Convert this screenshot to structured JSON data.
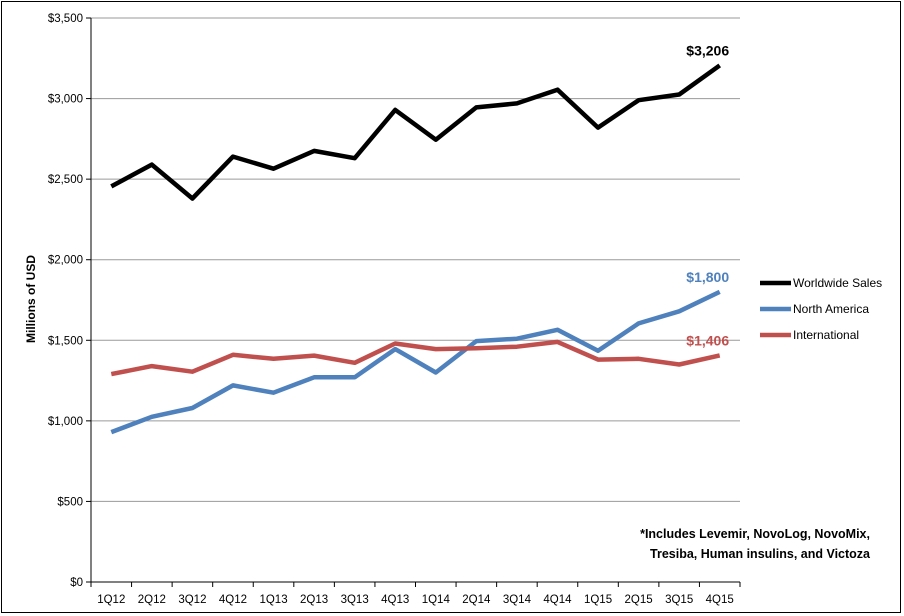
{
  "chart_data": {
    "type": "line",
    "title": "",
    "xlabel": "",
    "ylabel": "Millions of USD",
    "categories": [
      "1Q12",
      "2Q12",
      "3Q12",
      "4Q12",
      "1Q13",
      "2Q13",
      "3Q13",
      "4Q13",
      "1Q14",
      "2Q14",
      "3Q14",
      "4Q14",
      "1Q15",
      "2Q15",
      "3Q15",
      "4Q15"
    ],
    "ylim": [
      0,
      3500
    ],
    "yticks": [
      0,
      500,
      1000,
      1500,
      2000,
      2500,
      3000,
      3500
    ],
    "ytick_labels": [
      "$0",
      "$500",
      "$1,000",
      "$1,500",
      "$2,000",
      "$2,500",
      "$3,000",
      "$3,500"
    ],
    "grid": true,
    "legend_position": "right",
    "series": [
      {
        "name": "Worldwide Sales",
        "color": "#000000",
        "values": [
          2455,
          2590,
          2380,
          2640,
          2565,
          2675,
          2630,
          2930,
          2745,
          2945,
          2970,
          3055,
          2820,
          2990,
          3025,
          3206
        ],
        "end_label": "$3,206"
      },
      {
        "name": "North America",
        "color": "#4F81BD",
        "values": [
          930,
          1025,
          1080,
          1220,
          1175,
          1270,
          1270,
          1445,
          1300,
          1495,
          1510,
          1565,
          1435,
          1605,
          1680,
          1800
        ],
        "end_label": "$1,800"
      },
      {
        "name": "International",
        "color": "#C0504D",
        "values": [
          1290,
          1340,
          1305,
          1410,
          1385,
          1405,
          1360,
          1480,
          1445,
          1450,
          1460,
          1490,
          1380,
          1385,
          1350,
          1406
        ],
        "end_label": "$1,406"
      }
    ]
  },
  "footnote": {
    "line1": "*Includes Levemir, NovoLog, NovoMix,",
    "line2": "Tresiba, Human insulins, and Victoza"
  }
}
